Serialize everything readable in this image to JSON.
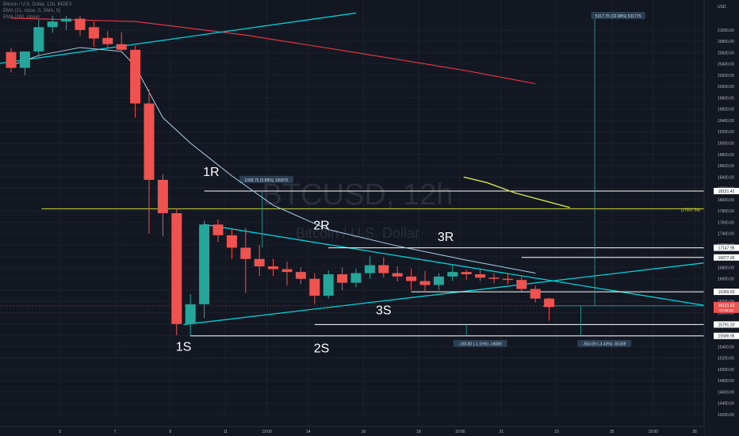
{
  "legend": {
    "line1": "Bitcoin / U.S. Dollar, 12h, INDEX",
    "line2": "EMA (21, close, 0, SMA, 5)",
    "line3": "EMA (200, close)"
  },
  "watermark": {
    "symbol": "BTCUSD, 12h",
    "name": "Bitcoin / U.S. Dollar"
  },
  "colors": {
    "background": "#131722",
    "up": "#26a69a",
    "down": "#ef5350",
    "ema21": "#a9d1e8",
    "ema200": "#e03445",
    "trendline": "#00d0d8",
    "level_line": "#ffffff",
    "hline_yellow": "#cddc39",
    "projection": "#d4e157"
  },
  "chart_data": {
    "type": "candlestick",
    "symbol": "BTCUSD",
    "interval": "12h",
    "currency": "USD",
    "ylim": [
      14100,
      21250
    ],
    "y_ticks": [
      21000,
      20800,
      20600,
      20400,
      20200,
      20000,
      19800,
      19600,
      19400,
      19200,
      19000,
      18800,
      18600,
      18400,
      18200,
      18000,
      17800,
      17600,
      17400,
      17200,
      17000,
      16800,
      16600,
      16400,
      16200,
      16000,
      15800,
      15600,
      15400,
      15200,
      15000,
      14800,
      14600,
      14400,
      14200
    ],
    "x_ticks": [
      "5",
      "7",
      "9",
      "11",
      "19:00",
      "14",
      "16",
      "18",
      "19:00",
      "21",
      "23",
      "25",
      "19:00",
      "28"
    ],
    "candles": [
      {
        "o": 20610,
        "h": 20680,
        "l": 20250,
        "c": 20330
      },
      {
        "o": 20330,
        "h": 20600,
        "l": 20200,
        "c": 20620
      },
      {
        "o": 20620,
        "h": 21180,
        "l": 20500,
        "c": 21050
      },
      {
        "o": 21050,
        "h": 21250,
        "l": 20950,
        "c": 21150
      },
      {
        "o": 21150,
        "h": 21250,
        "l": 21000,
        "c": 21200
      },
      {
        "o": 21200,
        "h": 21250,
        "l": 20900,
        "c": 21000
      },
      {
        "o": 21050,
        "h": 21150,
        "l": 20700,
        "c": 20850
      },
      {
        "o": 20860,
        "h": 20980,
        "l": 20680,
        "c": 20750
      },
      {
        "o": 20750,
        "h": 20960,
        "l": 20600,
        "c": 20650
      },
      {
        "o": 20650,
        "h": 20720,
        "l": 19450,
        "c": 19700
      },
      {
        "o": 19700,
        "h": 19950,
        "l": 17400,
        "c": 18350
      },
      {
        "o": 18350,
        "h": 18450,
        "l": 17350,
        "c": 17760
      },
      {
        "o": 17760,
        "h": 17840,
        "l": 15600,
        "c": 15800
      },
      {
        "o": 15800,
        "h": 16330,
        "l": 15590,
        "c": 16150
      },
      {
        "o": 16150,
        "h": 17630,
        "l": 15900,
        "c": 17560
      },
      {
        "o": 17560,
        "h": 17650,
        "l": 17250,
        "c": 17370
      },
      {
        "o": 17370,
        "h": 17480,
        "l": 16950,
        "c": 17150
      },
      {
        "o": 17150,
        "h": 17500,
        "l": 16350,
        "c": 16950
      },
      {
        "o": 16950,
        "h": 17200,
        "l": 16650,
        "c": 16820
      },
      {
        "o": 16820,
        "h": 16950,
        "l": 16650,
        "c": 16770
      },
      {
        "o": 16770,
        "h": 16900,
        "l": 16480,
        "c": 16720
      },
      {
        "o": 16720,
        "h": 16800,
        "l": 16500,
        "c": 16600
      },
      {
        "o": 16600,
        "h": 16700,
        "l": 16150,
        "c": 16300
      },
      {
        "o": 16300,
        "h": 16750,
        "l": 16250,
        "c": 16680
      },
      {
        "o": 16680,
        "h": 16800,
        "l": 16400,
        "c": 16530
      },
      {
        "o": 16530,
        "h": 16780,
        "l": 16450,
        "c": 16700
      },
      {
        "o": 16700,
        "h": 17000,
        "l": 16600,
        "c": 16840
      },
      {
        "o": 16840,
        "h": 16980,
        "l": 16620,
        "c": 16700
      },
      {
        "o": 16700,
        "h": 16820,
        "l": 16550,
        "c": 16640
      },
      {
        "o": 16640,
        "h": 16780,
        "l": 16400,
        "c": 16560
      },
      {
        "o": 16560,
        "h": 16740,
        "l": 16360,
        "c": 16490
      },
      {
        "o": 16490,
        "h": 16700,
        "l": 16400,
        "c": 16640
      },
      {
        "o": 16640,
        "h": 16860,
        "l": 16560,
        "c": 16720
      },
      {
        "o": 16720,
        "h": 16760,
        "l": 16580,
        "c": 16680
      },
      {
        "o": 16680,
        "h": 16760,
        "l": 16560,
        "c": 16620
      },
      {
        "o": 16620,
        "h": 16700,
        "l": 16520,
        "c": 16600
      },
      {
        "o": 16600,
        "h": 16680,
        "l": 16500,
        "c": 16580
      },
      {
        "o": 16580,
        "h": 16650,
        "l": 16380,
        "c": 16420
      },
      {
        "o": 16420,
        "h": 16480,
        "l": 16180,
        "c": 16250
      },
      {
        "o": 16250,
        "h": 16270,
        "l": 15860,
        "c": 16100
      }
    ],
    "ema21": [
      {
        "i": 0,
        "v": 20370
      },
      {
        "i": 2,
        "v": 20550
      },
      {
        "i": 5,
        "v": 20690
      },
      {
        "i": 8,
        "v": 20620
      },
      {
        "i": 9,
        "v": 20360
      },
      {
        "i": 10,
        "v": 19900
      },
      {
        "i": 11,
        "v": 19450
      },
      {
        "i": 13,
        "v": 19000
      },
      {
        "i": 16,
        "v": 18420
      },
      {
        "i": 19,
        "v": 17900
      },
      {
        "i": 23,
        "v": 17470
      },
      {
        "i": 28,
        "v": 17180
      },
      {
        "i": 33,
        "v": 16930
      },
      {
        "i": 38,
        "v": 16700
      }
    ],
    "ema200": [
      {
        "i": 0,
        "v": 21210
      },
      {
        "i": 9,
        "v": 21150
      },
      {
        "i": 17,
        "v": 20910
      },
      {
        "i": 25,
        "v": 20600
      },
      {
        "i": 33,
        "v": 20280
      },
      {
        "i": 38,
        "v": 20050
      }
    ],
    "level_lines": [
      {
        "value": 18151.42,
        "label": "18151.42",
        "from_i": 14
      },
      {
        "value": 17147.95,
        "label": "17147.95",
        "from_i": 23
      },
      {
        "value": 16977.0,
        "label": "16977.00",
        "from_i": 37
      },
      {
        "value": 16369.69,
        "label": "16369.69",
        "from_i": 29
      },
      {
        "value": 15791.2,
        "label": "15791.20",
        "from_i": 22
      },
      {
        "value": 15589.95,
        "label": "15589.95",
        "from_i": 13
      }
    ],
    "yellow_level": {
      "value": 17837.54,
      "label": "(17837.54)"
    },
    "last_price": {
      "value": 16121.63,
      "label": "16121.63",
      "countdown": "07:08:15"
    },
    "pivot_labels": [
      {
        "text": "1R",
        "i": 14.5,
        "v": 18420
      },
      {
        "text": "2R",
        "i": 22.5,
        "v": 17470
      },
      {
        "text": "3R",
        "i": 31.5,
        "v": 17270
      },
      {
        "text": "1S",
        "i": 12.5,
        "v": 15330
      },
      {
        "text": "2S",
        "i": 22.5,
        "v": 15300
      },
      {
        "text": "3S",
        "i": 27.0,
        "v": 15970
      }
    ],
    "measure_labels": [
      {
        "text": "1008.75 (5.88%) 100875",
        "i": 18.5,
        "v": 18350
      },
      {
        "text": "5317.75 (32.98%) 531775",
        "i": 44.0,
        "v": 21250
      },
      {
        "text": "-180.80 (-1.15%) -18080",
        "i": 34.0,
        "v": 15450
      },
      {
        "text": "-553.09 (-3.43%) -55309",
        "i": 43.0,
        "v": 15450
      }
    ]
  }
}
